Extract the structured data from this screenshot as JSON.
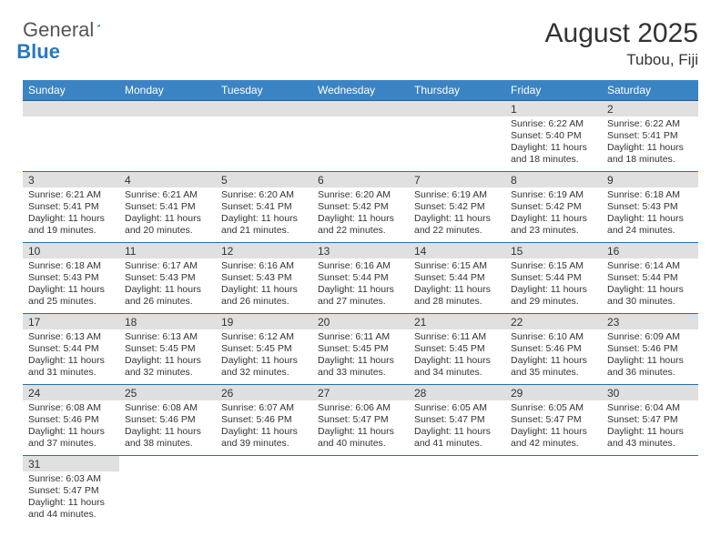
{
  "logo": {
    "text1": "General",
    "text2": "Blue"
  },
  "header": {
    "month": "August 2025",
    "location": "Tubou, Fiji"
  },
  "weekdays": [
    "Sunday",
    "Monday",
    "Tuesday",
    "Wednesday",
    "Thursday",
    "Friday",
    "Saturday"
  ],
  "colors": {
    "header_bg": "#3b84c4",
    "header_fg": "#ffffff",
    "daynum_bg": "#e0e0e0",
    "row_border": "#2a6fa8",
    "logo_blue": "#2a78bf"
  },
  "cells": [
    [
      null,
      null,
      null,
      null,
      null,
      {
        "day": "1",
        "sunrise": "Sunrise: 6:22 AM",
        "sunset": "Sunset: 5:40 PM",
        "daylight1": "Daylight: 11 hours",
        "daylight2": "and 18 minutes."
      },
      {
        "day": "2",
        "sunrise": "Sunrise: 6:22 AM",
        "sunset": "Sunset: 5:41 PM",
        "daylight1": "Daylight: 11 hours",
        "daylight2": "and 18 minutes."
      }
    ],
    [
      {
        "day": "3",
        "sunrise": "Sunrise: 6:21 AM",
        "sunset": "Sunset: 5:41 PM",
        "daylight1": "Daylight: 11 hours",
        "daylight2": "and 19 minutes."
      },
      {
        "day": "4",
        "sunrise": "Sunrise: 6:21 AM",
        "sunset": "Sunset: 5:41 PM",
        "daylight1": "Daylight: 11 hours",
        "daylight2": "and 20 minutes."
      },
      {
        "day": "5",
        "sunrise": "Sunrise: 6:20 AM",
        "sunset": "Sunset: 5:41 PM",
        "daylight1": "Daylight: 11 hours",
        "daylight2": "and 21 minutes."
      },
      {
        "day": "6",
        "sunrise": "Sunrise: 6:20 AM",
        "sunset": "Sunset: 5:42 PM",
        "daylight1": "Daylight: 11 hours",
        "daylight2": "and 22 minutes."
      },
      {
        "day": "7",
        "sunrise": "Sunrise: 6:19 AM",
        "sunset": "Sunset: 5:42 PM",
        "daylight1": "Daylight: 11 hours",
        "daylight2": "and 22 minutes."
      },
      {
        "day": "8",
        "sunrise": "Sunrise: 6:19 AM",
        "sunset": "Sunset: 5:42 PM",
        "daylight1": "Daylight: 11 hours",
        "daylight2": "and 23 minutes."
      },
      {
        "day": "9",
        "sunrise": "Sunrise: 6:18 AM",
        "sunset": "Sunset: 5:43 PM",
        "daylight1": "Daylight: 11 hours",
        "daylight2": "and 24 minutes."
      }
    ],
    [
      {
        "day": "10",
        "sunrise": "Sunrise: 6:18 AM",
        "sunset": "Sunset: 5:43 PM",
        "daylight1": "Daylight: 11 hours",
        "daylight2": "and 25 minutes."
      },
      {
        "day": "11",
        "sunrise": "Sunrise: 6:17 AM",
        "sunset": "Sunset: 5:43 PM",
        "daylight1": "Daylight: 11 hours",
        "daylight2": "and 26 minutes."
      },
      {
        "day": "12",
        "sunrise": "Sunrise: 6:16 AM",
        "sunset": "Sunset: 5:43 PM",
        "daylight1": "Daylight: 11 hours",
        "daylight2": "and 26 minutes."
      },
      {
        "day": "13",
        "sunrise": "Sunrise: 6:16 AM",
        "sunset": "Sunset: 5:44 PM",
        "daylight1": "Daylight: 11 hours",
        "daylight2": "and 27 minutes."
      },
      {
        "day": "14",
        "sunrise": "Sunrise: 6:15 AM",
        "sunset": "Sunset: 5:44 PM",
        "daylight1": "Daylight: 11 hours",
        "daylight2": "and 28 minutes."
      },
      {
        "day": "15",
        "sunrise": "Sunrise: 6:15 AM",
        "sunset": "Sunset: 5:44 PM",
        "daylight1": "Daylight: 11 hours",
        "daylight2": "and 29 minutes."
      },
      {
        "day": "16",
        "sunrise": "Sunrise: 6:14 AM",
        "sunset": "Sunset: 5:44 PM",
        "daylight1": "Daylight: 11 hours",
        "daylight2": "and 30 minutes."
      }
    ],
    [
      {
        "day": "17",
        "sunrise": "Sunrise: 6:13 AM",
        "sunset": "Sunset: 5:44 PM",
        "daylight1": "Daylight: 11 hours",
        "daylight2": "and 31 minutes."
      },
      {
        "day": "18",
        "sunrise": "Sunrise: 6:13 AM",
        "sunset": "Sunset: 5:45 PM",
        "daylight1": "Daylight: 11 hours",
        "daylight2": "and 32 minutes."
      },
      {
        "day": "19",
        "sunrise": "Sunrise: 6:12 AM",
        "sunset": "Sunset: 5:45 PM",
        "daylight1": "Daylight: 11 hours",
        "daylight2": "and 32 minutes."
      },
      {
        "day": "20",
        "sunrise": "Sunrise: 6:11 AM",
        "sunset": "Sunset: 5:45 PM",
        "daylight1": "Daylight: 11 hours",
        "daylight2": "and 33 minutes."
      },
      {
        "day": "21",
        "sunrise": "Sunrise: 6:11 AM",
        "sunset": "Sunset: 5:45 PM",
        "daylight1": "Daylight: 11 hours",
        "daylight2": "and 34 minutes."
      },
      {
        "day": "22",
        "sunrise": "Sunrise: 6:10 AM",
        "sunset": "Sunset: 5:46 PM",
        "daylight1": "Daylight: 11 hours",
        "daylight2": "and 35 minutes."
      },
      {
        "day": "23",
        "sunrise": "Sunrise: 6:09 AM",
        "sunset": "Sunset: 5:46 PM",
        "daylight1": "Daylight: 11 hours",
        "daylight2": "and 36 minutes."
      }
    ],
    [
      {
        "day": "24",
        "sunrise": "Sunrise: 6:08 AM",
        "sunset": "Sunset: 5:46 PM",
        "daylight1": "Daylight: 11 hours",
        "daylight2": "and 37 minutes."
      },
      {
        "day": "25",
        "sunrise": "Sunrise: 6:08 AM",
        "sunset": "Sunset: 5:46 PM",
        "daylight1": "Daylight: 11 hours",
        "daylight2": "and 38 minutes."
      },
      {
        "day": "26",
        "sunrise": "Sunrise: 6:07 AM",
        "sunset": "Sunset: 5:46 PM",
        "daylight1": "Daylight: 11 hours",
        "daylight2": "and 39 minutes."
      },
      {
        "day": "27",
        "sunrise": "Sunrise: 6:06 AM",
        "sunset": "Sunset: 5:47 PM",
        "daylight1": "Daylight: 11 hours",
        "daylight2": "and 40 minutes."
      },
      {
        "day": "28",
        "sunrise": "Sunrise: 6:05 AM",
        "sunset": "Sunset: 5:47 PM",
        "daylight1": "Daylight: 11 hours",
        "daylight2": "and 41 minutes."
      },
      {
        "day": "29",
        "sunrise": "Sunrise: 6:05 AM",
        "sunset": "Sunset: 5:47 PM",
        "daylight1": "Daylight: 11 hours",
        "daylight2": "and 42 minutes."
      },
      {
        "day": "30",
        "sunrise": "Sunrise: 6:04 AM",
        "sunset": "Sunset: 5:47 PM",
        "daylight1": "Daylight: 11 hours",
        "daylight2": "and 43 minutes."
      }
    ],
    [
      {
        "day": "31",
        "sunrise": "Sunrise: 6:03 AM",
        "sunset": "Sunset: 5:47 PM",
        "daylight1": "Daylight: 11 hours",
        "daylight2": "and 44 minutes."
      },
      null,
      null,
      null,
      null,
      null,
      null
    ]
  ]
}
